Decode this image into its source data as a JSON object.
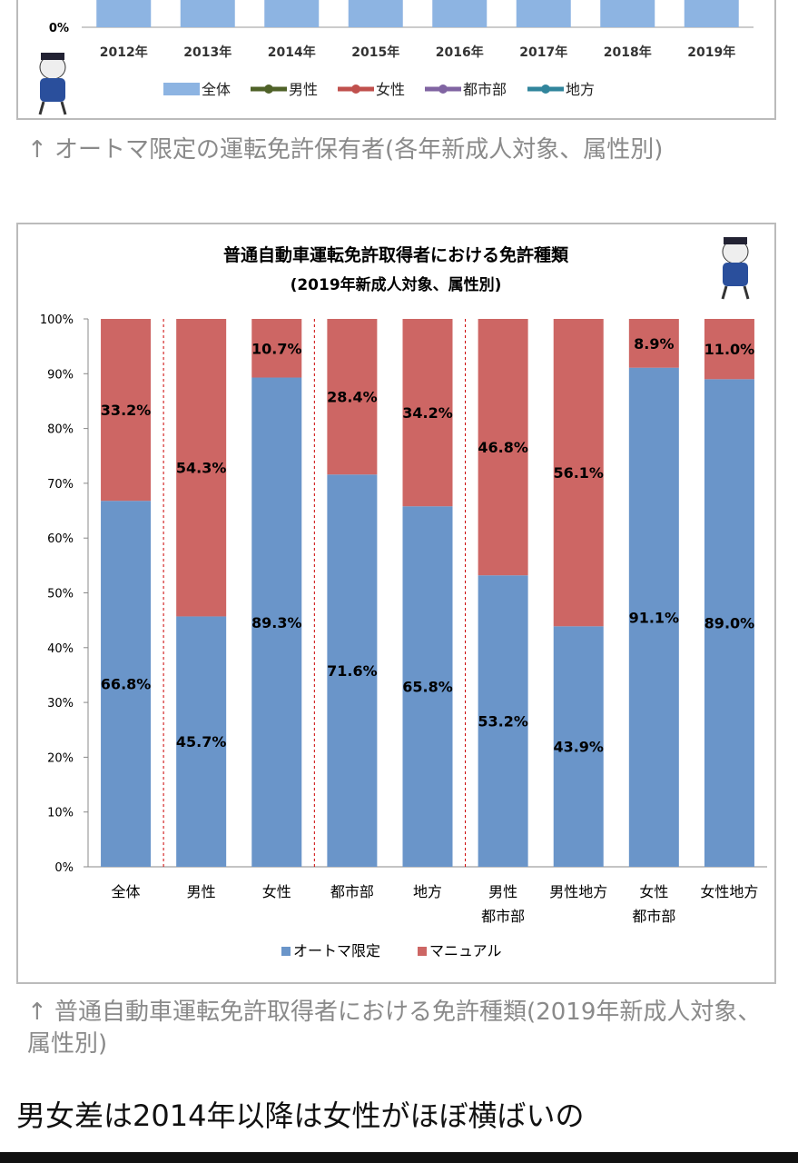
{
  "chart_data": [
    {
      "type": "bar",
      "title": "",
      "categories": [
        "2012年",
        "2013年",
        "2014年",
        "2015年",
        "2016年",
        "2017年",
        "2018年",
        "2019年"
      ],
      "ytick_visible": "0%",
      "legend": [
        "全体",
        "男性",
        "女性",
        "都市部",
        "地方"
      ],
      "legend_placement": "bottom",
      "colors": {
        "全体": "#8db4e2",
        "男性": "#4f6228",
        "女性": "#c0504d",
        "都市部": "#8064a2",
        "地方": "#31859c"
      }
    },
    {
      "type": "bar",
      "stacked": true,
      "title": "普通自動車運転免許取得者における免許種類",
      "subtitle": "(2019年新成人対象、属性別)",
      "categories": [
        "全体",
        "男性",
        "女性",
        "都市部",
        "地方",
        "男性\n都市部",
        "男性地方",
        "女性\n都市部",
        "女性地方"
      ],
      "series": [
        {
          "name": "オートマ限定",
          "color": "#6a95c9",
          "values": [
            66.8,
            45.7,
            89.3,
            71.6,
            65.8,
            53.2,
            43.9,
            91.1,
            89.0
          ]
        },
        {
          "name": "マニュアル",
          "color": "#cd6664",
          "values": [
            33.2,
            54.3,
            10.7,
            28.4,
            34.2,
            46.8,
            56.1,
            8.9,
            11.0
          ]
        }
      ],
      "labels_auto": [
        "66.8%",
        "45.7%",
        "89.3%",
        "71.6%",
        "65.8%",
        "53.2%",
        "43.9%",
        "91.1%",
        "89.0%"
      ],
      "labels_manual": [
        "33.2%",
        "54.3%",
        "10.7%",
        "28.4%",
        "34.2%",
        "46.8%",
        "56.1%",
        "8.9%",
        "11.0%"
      ],
      "yticks": [
        "0%",
        "10%",
        "20%",
        "30%",
        "40%",
        "50%",
        "60%",
        "70%",
        "80%",
        "90%",
        "100%"
      ],
      "ylim": [
        0,
        100
      ],
      "grid": false,
      "legend_placement": "bottom"
    }
  ],
  "captions": [
    "↑ オートマ限定の運転免許保有者(各年新成人対象、属性別)",
    "↑ 普通自動車運転免許取得者における免許種類(2019年新成人対象、属性別)"
  ],
  "body_text": "男女差は2014年以降は女性がほぼ横ばいの"
}
